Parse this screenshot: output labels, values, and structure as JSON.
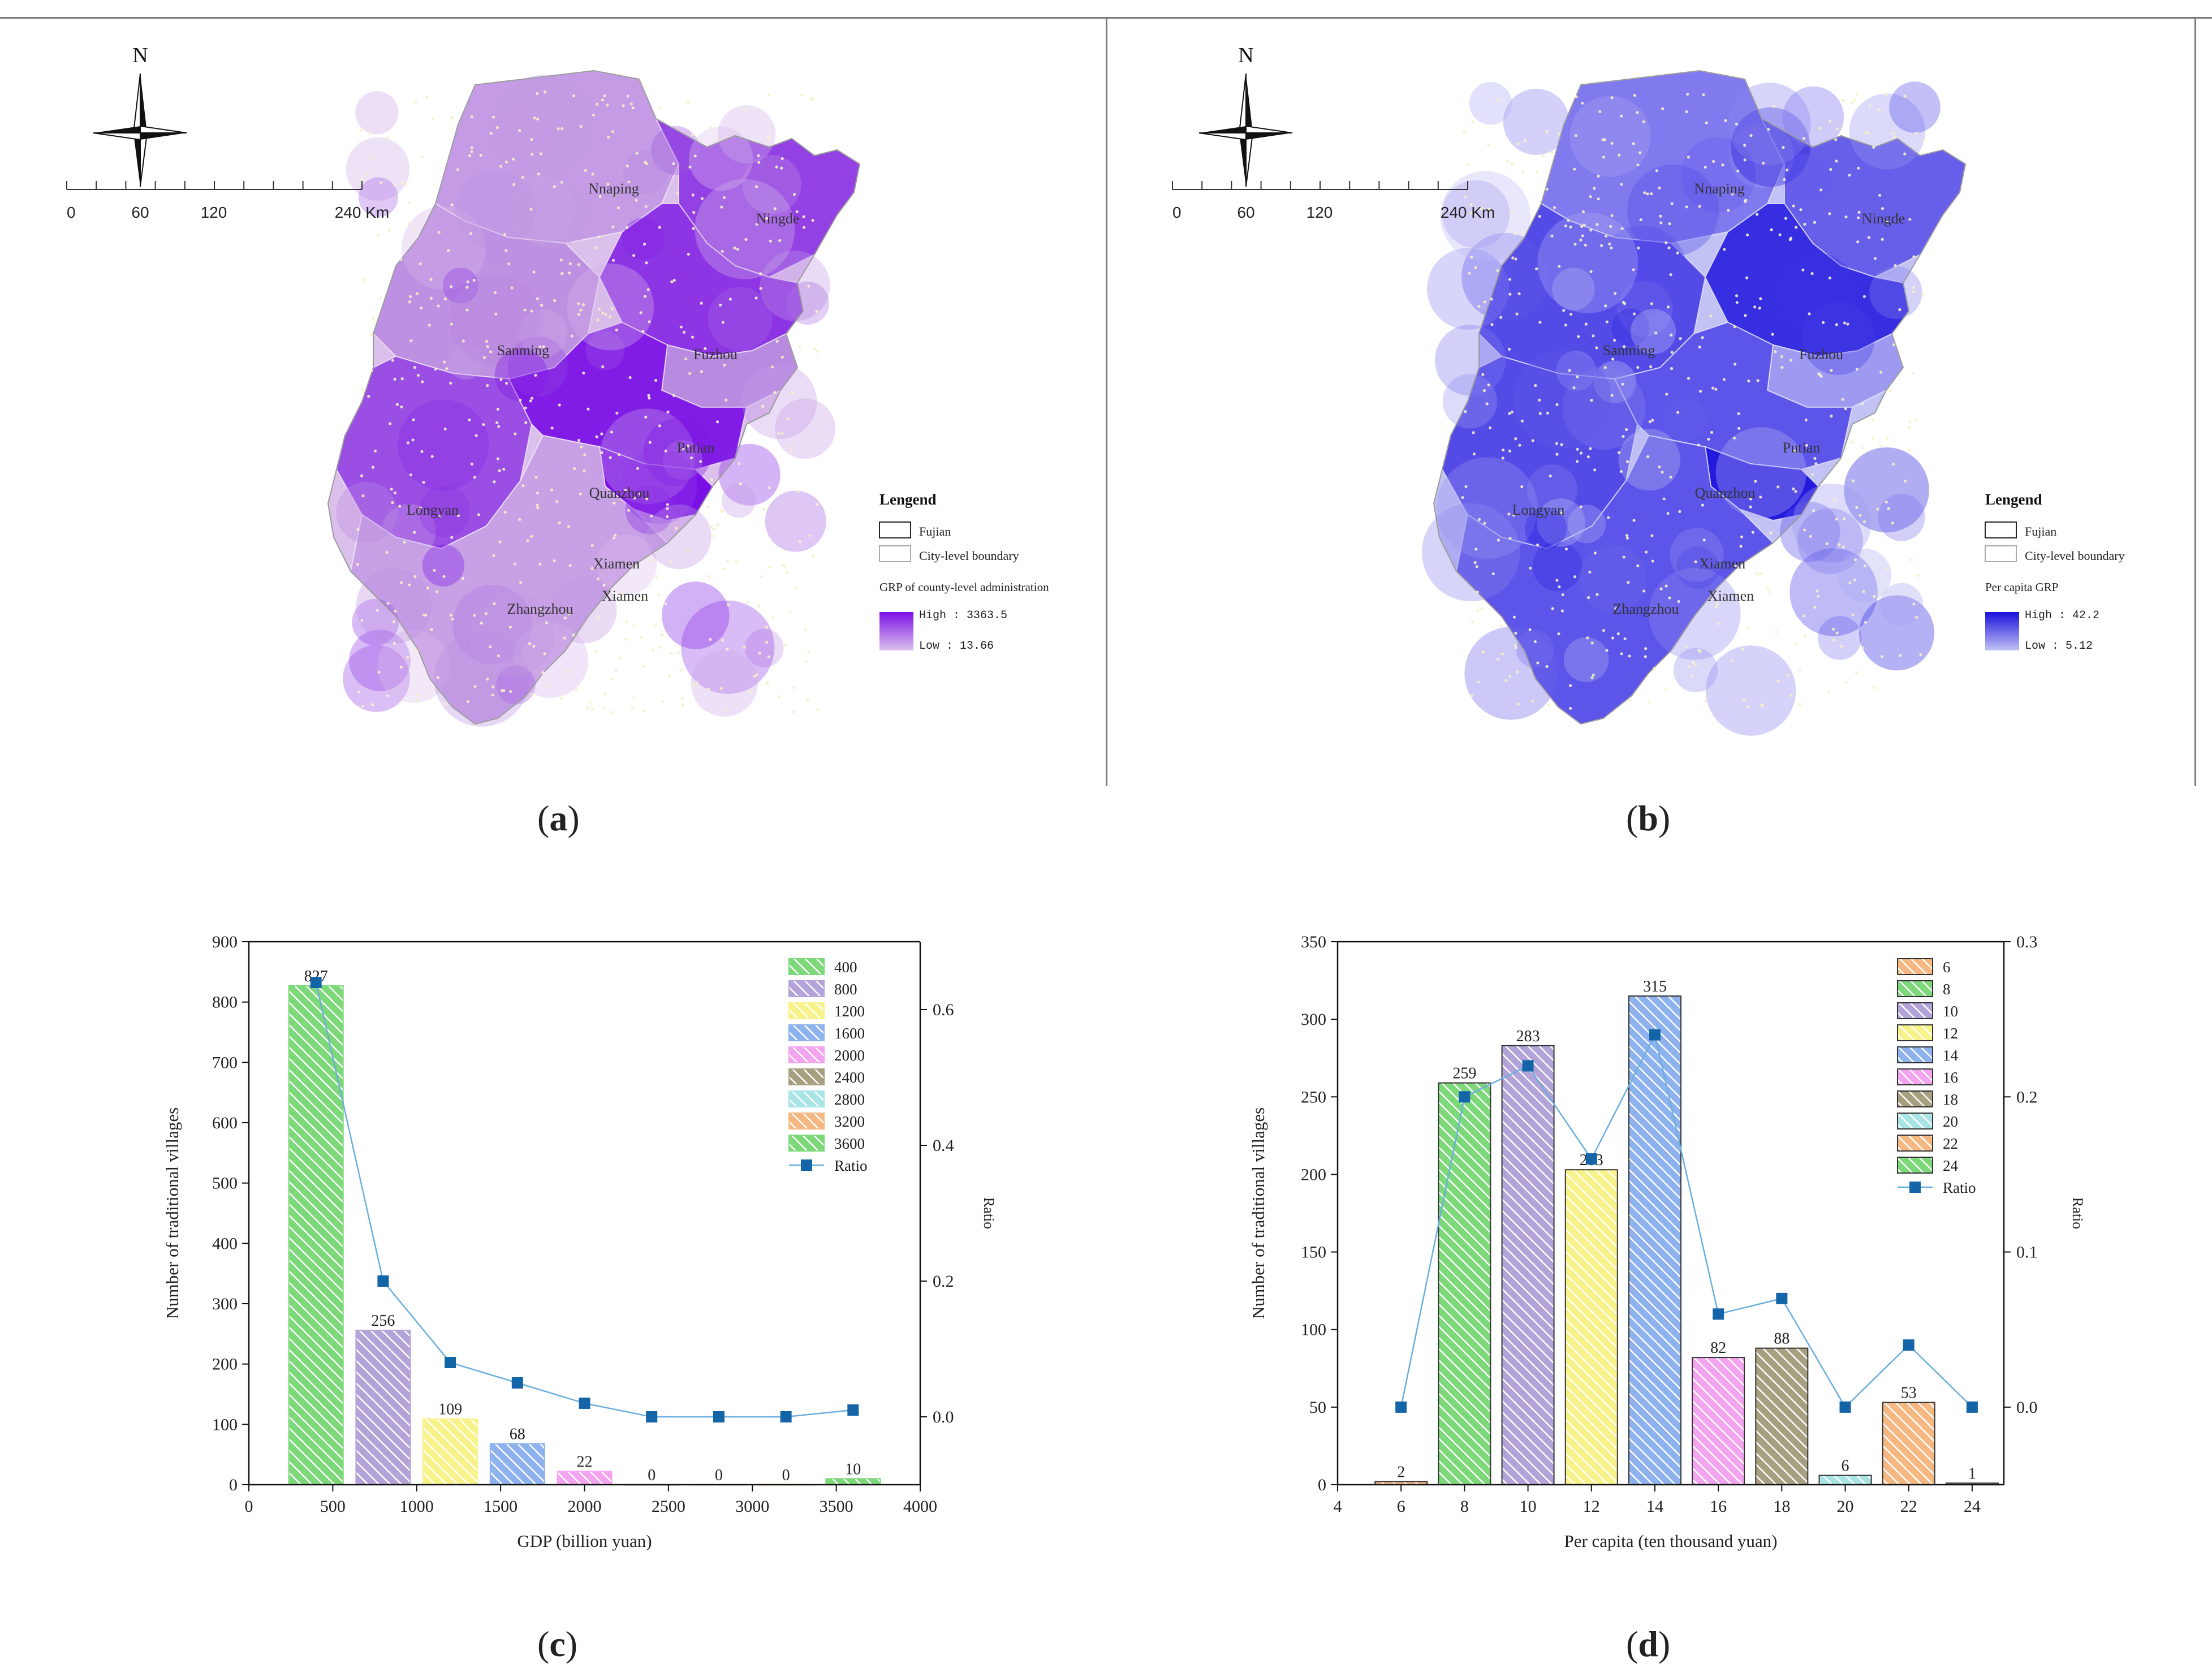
{
  "figure": {
    "captions": {
      "a": "a",
      "b": "b",
      "c": "c",
      "d": "d"
    }
  },
  "map_common": {
    "north": "N",
    "scale_labels": [
      "0",
      "60",
      "120",
      "240 Km"
    ],
    "cities": [
      "Nnaping",
      "Ningde",
      "Sanming",
      "Fuzhou",
      "Putian",
      "Longyan",
      "Quanzhou",
      "Xiamen",
      "Zhangzhou",
      "Xiamen"
    ],
    "legend_title": "Lengend",
    "legend_fujian": "Fujian",
    "legend_city_boundary": "City-level boundary"
  },
  "map_a": {
    "gradient_title": "GRP of county-level administration",
    "high": "High : 3363.5",
    "low": "Low : 13.66",
    "colors": {
      "low": "#dcc0ec",
      "mid": "#b98be0",
      "high": "#7a10e6"
    }
  },
  "map_b": {
    "gradient_title": "Per capita GRP",
    "high": "High : 42.2",
    "low": "Low : 5.12",
    "colors": {
      "low": "#c2c2f5",
      "mid": "#7a72ee",
      "high": "#1a10dc"
    }
  },
  "chart_data": [
    {
      "type": "bar",
      "panel": "c",
      "categories": [
        "400",
        "800",
        "1200",
        "1600",
        "2000",
        "2400",
        "2800",
        "3200",
        "3600"
      ],
      "x": [
        400,
        800,
        1200,
        1600,
        2000,
        2400,
        2800,
        3200,
        3600
      ],
      "values": [
        827,
        256,
        109,
        68,
        22,
        0,
        0,
        0,
        10
      ],
      "data_labels": [
        "827",
        "256",
        "109",
        "68",
        "22",
        "0",
        "0",
        "0",
        "10"
      ],
      "ratio": [
        0.64,
        0.2,
        0.08,
        0.05,
        0.02,
        0.0,
        0.0,
        0.0,
        0.01
      ],
      "ratio_label": "Ratio",
      "xlabel": "GDP (billion yuan)",
      "ylabel": "Number of traditional villages",
      "y2label": "Ratio",
      "xlim": [
        0,
        4000
      ],
      "ylim": [
        0,
        900
      ],
      "y2lim": [
        -0.1,
        0.7
      ],
      "xticks": [
        "0",
        "500",
        "1000",
        "1500",
        "2000",
        "2500",
        "3000",
        "3500",
        "4000"
      ],
      "yticks": [
        "0",
        "100",
        "200",
        "300",
        "400",
        "500",
        "600",
        "700",
        "800",
        "900"
      ],
      "y2ticks": [
        "0.0",
        "0.2",
        "0.4",
        "0.6"
      ],
      "colors": [
        "#7dd87a",
        "#b3a3d8",
        "#f7f38a",
        "#8eb2ee",
        "#f2a4ee",
        "#a6a080",
        "#a8e4e4",
        "#f6b882",
        "#7dd87a"
      ],
      "legend": "top-right"
    },
    {
      "type": "bar",
      "panel": "d",
      "categories": [
        "6",
        "8",
        "10",
        "12",
        "14",
        "16",
        "18",
        "20",
        "22",
        "24"
      ],
      "x": [
        6,
        8,
        10,
        12,
        14,
        16,
        18,
        20,
        22,
        24
      ],
      "values": [
        2,
        259,
        283,
        203,
        315,
        82,
        88,
        6,
        53,
        1
      ],
      "data_labels": [
        "2",
        "259",
        "283",
        "203",
        "315",
        "82",
        "88",
        "6",
        "53",
        "1"
      ],
      "ratio": [
        0.0,
        0.2,
        0.22,
        0.16,
        0.24,
        0.06,
        0.07,
        0.0,
        0.04,
        0.0
      ],
      "ratio_label": "Ratio",
      "xlabel": "Per capita (ten thousand yuan)",
      "ylabel": "Number of traditional villages",
      "y2label": "Ratio",
      "xlim": [
        4,
        25
      ],
      "ylim": [
        0,
        350
      ],
      "y2lim": [
        -0.05,
        0.3
      ],
      "xticks": [
        "4",
        "6",
        "8",
        "10",
        "12",
        "14",
        "16",
        "18",
        "20",
        "22",
        "24"
      ],
      "yticks": [
        "0",
        "50",
        "100",
        "150",
        "200",
        "250",
        "300",
        "350"
      ],
      "y2ticks": [
        "0.0",
        "0.1",
        "0.2",
        "0.3"
      ],
      "colors": [
        "#f6b882",
        "#7dd87a",
        "#b3a3d8",
        "#f7f38a",
        "#8eb2ee",
        "#f2a4ee",
        "#a6a080",
        "#a8e4e4",
        "#f6b882",
        "#7dd87a"
      ],
      "legend": "top-right"
    }
  ]
}
